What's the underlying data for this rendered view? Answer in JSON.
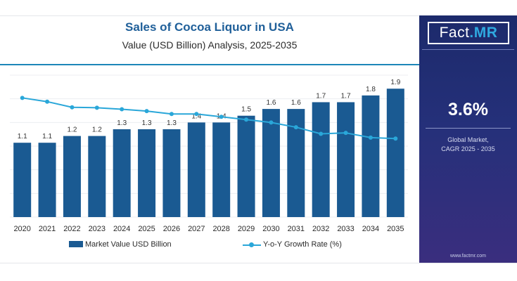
{
  "title": "Sales of Cocoa Liquor in USA",
  "subtitle": "Value (USD Billion) Analysis, 2025-2035",
  "legend": {
    "bar_label": "Market Value USD Billion",
    "line_label": "Y-o-Y Growth Rate (%)"
  },
  "panel": {
    "logo_fact": "Fact",
    "logo_mr": ".MR",
    "cagr_value": "3.6%",
    "cagr_label_line1": "Global Market,",
    "cagr_label_line2": "CAGR 2025 - 2035",
    "website": "www.factmr.com"
  },
  "colors": {
    "bar": "#1a5a92",
    "line": "#2aa7d9",
    "title": "#1f5f99",
    "panel": "#25307a"
  },
  "chart_data": {
    "type": "bar",
    "categories": [
      "2020",
      "2021",
      "2022",
      "2023",
      "2024",
      "2025",
      "2026",
      "2027",
      "2028",
      "2029",
      "2030",
      "2031",
      "2032",
      "2033",
      "2034",
      "2035"
    ],
    "series": [
      {
        "name": "Market Value USD Billion",
        "type": "bar",
        "values": [
          1.1,
          1.1,
          1.2,
          1.2,
          1.3,
          1.3,
          1.3,
          1.4,
          1.4,
          1.5,
          1.6,
          1.6,
          1.7,
          1.7,
          1.8,
          1.9
        ],
        "labels": [
          "1.1",
          "1.1",
          "1.2",
          "1.2",
          "1.3",
          "1.3",
          "1.3",
          "1.4",
          "1.4",
          "1.5",
          "1.6",
          "1.6",
          "1.7",
          "1.7",
          "1.8",
          "1.9"
        ]
      },
      {
        "name": "Y-o-Y Growth Rate (%)",
        "type": "line",
        "values": [
          4.8,
          4.6,
          4.3,
          4.28,
          4.2,
          4.1,
          3.95,
          3.95,
          3.8,
          3.65,
          3.5,
          3.25,
          2.9,
          2.95,
          2.7,
          2.65
        ]
      }
    ],
    "ylim": [
      0,
      2.1
    ],
    "y2lim": [
      -1.5,
      6
    ],
    "grid": true,
    "legend_position": "bottom"
  }
}
